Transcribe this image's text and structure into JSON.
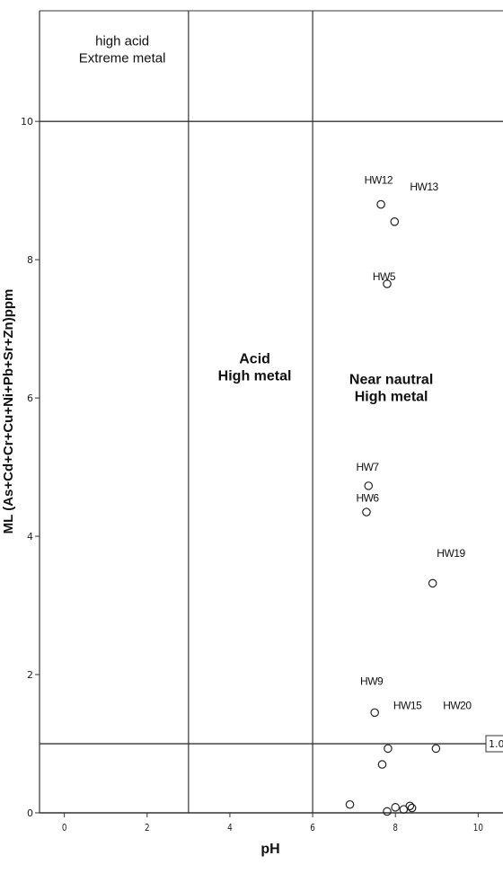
{
  "chart_data": {
    "type": "scatter",
    "title": "",
    "xlabel": "pH",
    "ylabel": "ML (As+Cd+Cr+Cu+Ni+Pb+Sr+Zn)ppm",
    "xlim": [
      -0.6,
      10.6
    ],
    "ylim": [
      0,
      11.6
    ],
    "x_ticks": [
      0,
      2,
      4,
      6,
      8,
      10
    ],
    "y_ticks": [
      0,
      2,
      4,
      6,
      8,
      10
    ],
    "grid": false,
    "reference_lines": {
      "vertical": [
        3,
        6
      ],
      "horizontal": [
        1,
        10
      ],
      "horizontal_label": "1.0"
    },
    "regions": [
      {
        "lines": [
          "high acid",
          "Extreme metal"
        ],
        "x": 1.4,
        "y": 11.1,
        "bold": false
      },
      {
        "lines": [
          "Acid",
          "High metal"
        ],
        "x": 4.6,
        "y": 6.5,
        "bold": true
      },
      {
        "lines": [
          "Near nautral",
          "High metal"
        ],
        "x": 7.9,
        "y": 6.2,
        "bold": true
      }
    ],
    "points": [
      {
        "x": 7.65,
        "y": 8.8,
        "label": "HW12",
        "lx": 7.25,
        "ly": 9.1
      },
      {
        "x": 7.98,
        "y": 8.55,
        "label": "HW13",
        "lx": 8.35,
        "ly": 9.0
      },
      {
        "x": 7.8,
        "y": 7.65,
        "label": "HW5",
        "lx": 7.45,
        "ly": 7.7
      },
      {
        "x": 7.35,
        "y": 4.73,
        "label": "HW7",
        "lx": 7.05,
        "ly": 4.95
      },
      {
        "x": 7.3,
        "y": 4.35,
        "label": "HW6",
        "lx": 7.05,
        "ly": 4.5
      },
      {
        "x": 8.9,
        "y": 3.32,
        "label": "HW19",
        "lx": 9.0,
        "ly": 3.7
      },
      {
        "x": 7.5,
        "y": 1.45,
        "label": "HW15",
        "lx": 7.95,
        "ly": 1.5
      },
      {
        "x": 8.98,
        "y": 0.93,
        "label": "HW20",
        "lx": 9.15,
        "ly": 1.5
      },
      {
        "x": 7.82,
        "y": 0.93,
        "label": "",
        "lx": 0,
        "ly": 0
      },
      {
        "x": 7.68,
        "y": 0.7,
        "label": "",
        "lx": 0,
        "ly": 0
      },
      {
        "x": 6.9,
        "y": 0.12,
        "label": "",
        "lx": 0,
        "ly": 0
      },
      {
        "x": 7.8,
        "y": 0.02,
        "label": "",
        "lx": 0,
        "ly": 0
      },
      {
        "x": 8.0,
        "y": 0.08,
        "label": "",
        "lx": 0,
        "ly": 0
      },
      {
        "x": 8.2,
        "y": 0.05,
        "label": "",
        "lx": 0,
        "ly": 0
      },
      {
        "x": 8.35,
        "y": 0.1,
        "label": "",
        "lx": 0,
        "ly": 0
      },
      {
        "x": 8.4,
        "y": 0.07,
        "label": "",
        "lx": 0,
        "ly": 0
      }
    ],
    "extra_labels": [
      {
        "text": "HW9",
        "x": 7.15,
        "y": 1.85
      }
    ]
  }
}
